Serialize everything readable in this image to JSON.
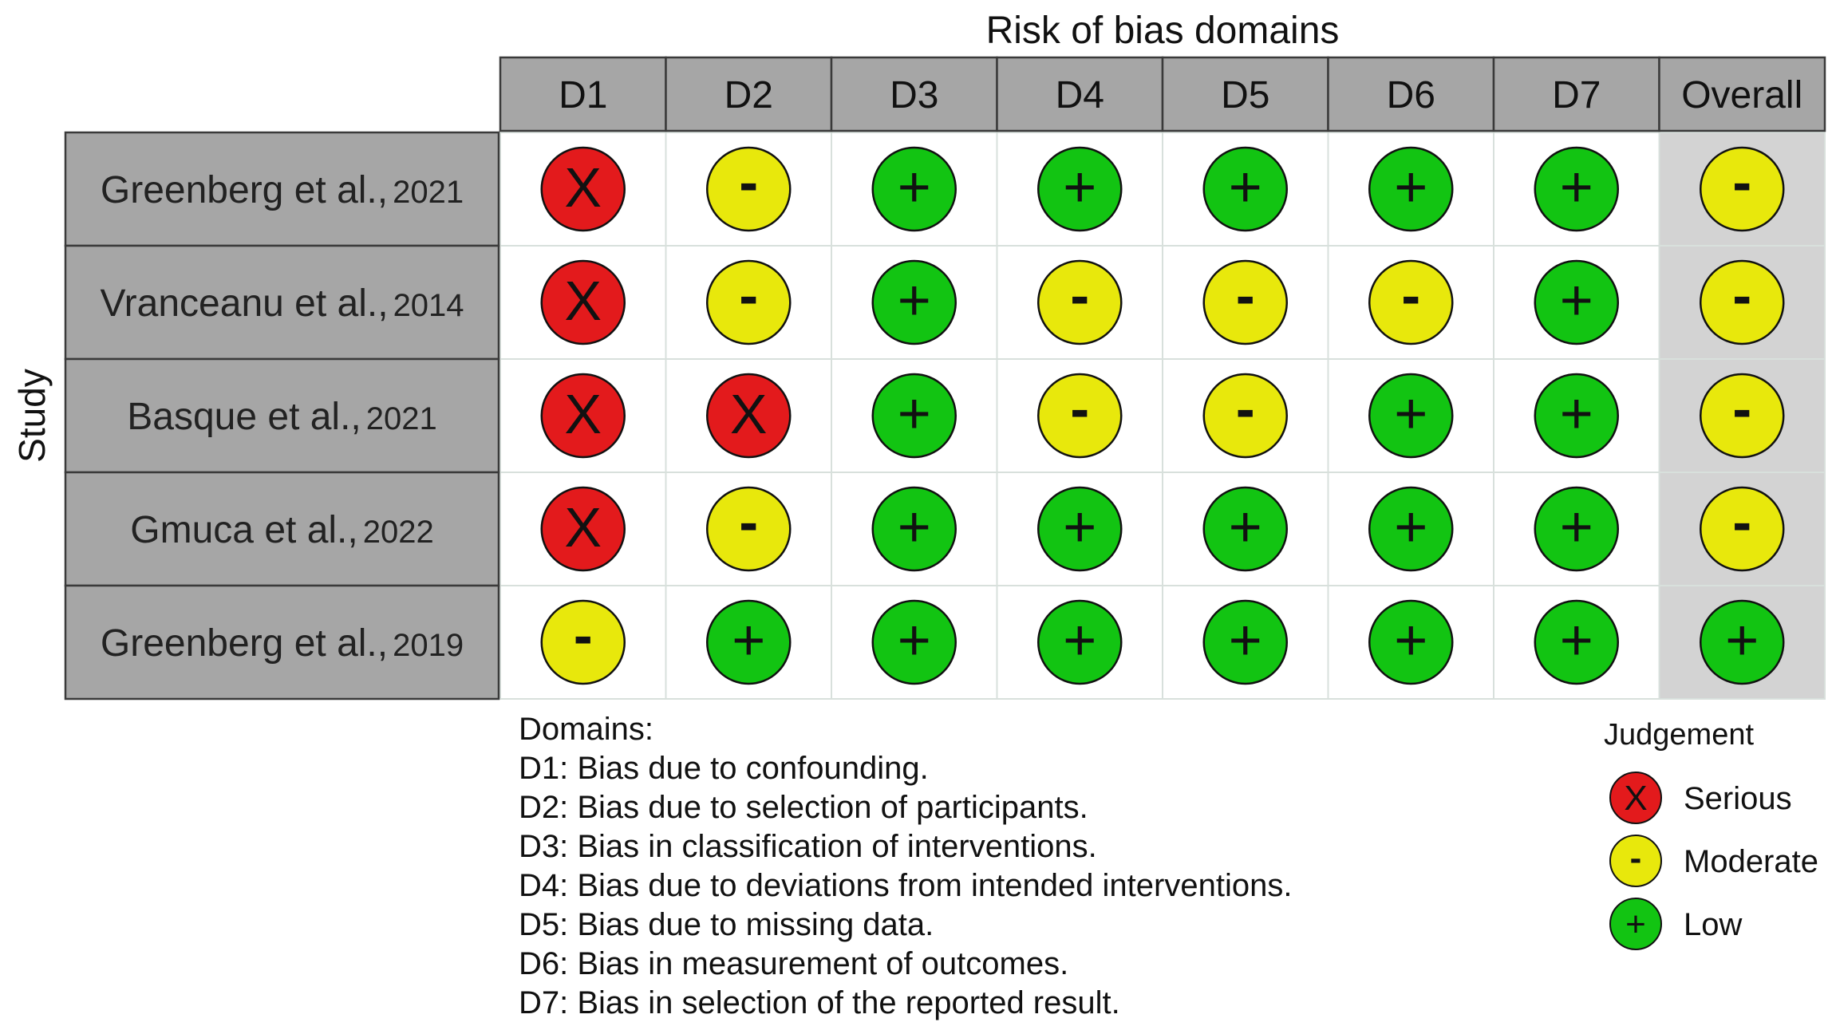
{
  "chart_data": {
    "type": "table",
    "title": "Risk of bias domains",
    "row_axis_label": "Study",
    "columns": [
      "D1",
      "D2",
      "D3",
      "D4",
      "D5",
      "D6",
      "D7",
      "Overall"
    ],
    "studies": [
      {
        "author": "Greenberg et al.,",
        "year": "2021",
        "judgements": [
          "serious",
          "moderate",
          "low",
          "low",
          "low",
          "low",
          "low",
          "moderate"
        ]
      },
      {
        "author": "Vranceanu et al.,",
        "year": "2014",
        "judgements": [
          "serious",
          "moderate",
          "low",
          "moderate",
          "moderate",
          "moderate",
          "low",
          "moderate"
        ]
      },
      {
        "author": "Basque et al.,",
        "year": "2021",
        "judgements": [
          "serious",
          "serious",
          "low",
          "moderate",
          "moderate",
          "low",
          "low",
          "moderate"
        ]
      },
      {
        "author": "Gmuca et al.,",
        "year": "2022",
        "judgements": [
          "serious",
          "moderate",
          "low",
          "low",
          "low",
          "low",
          "low",
          "moderate"
        ]
      },
      {
        "author": "Greenberg et al.,",
        "year": "2019",
        "judgements": [
          "moderate",
          "low",
          "low",
          "low",
          "low",
          "low",
          "low",
          "low"
        ]
      }
    ],
    "judgement_styles": {
      "serious": {
        "symbol": "X",
        "color": "#e31a1c"
      },
      "moderate": {
        "symbol": "-",
        "color": "#e8e80c"
      },
      "low": {
        "symbol": "+",
        "color": "#12c412"
      }
    },
    "legend": {
      "title": "Judgement",
      "items": [
        {
          "key": "serious",
          "label": "Serious"
        },
        {
          "key": "moderate",
          "label": "Moderate"
        },
        {
          "key": "low",
          "label": "Low"
        }
      ]
    },
    "domains_heading": "Domains:",
    "domain_definitions": [
      "D1: Bias due to confounding.",
      "D2: Bias due to selection of participants.",
      "D3: Bias in classification of interventions.",
      "D4: Bias due to deviations from intended interventions.",
      "D5: Bias due to missing data.",
      "D6: Bias in measurement of outcomes.",
      "D7: Bias in selection of the reported result."
    ]
  }
}
